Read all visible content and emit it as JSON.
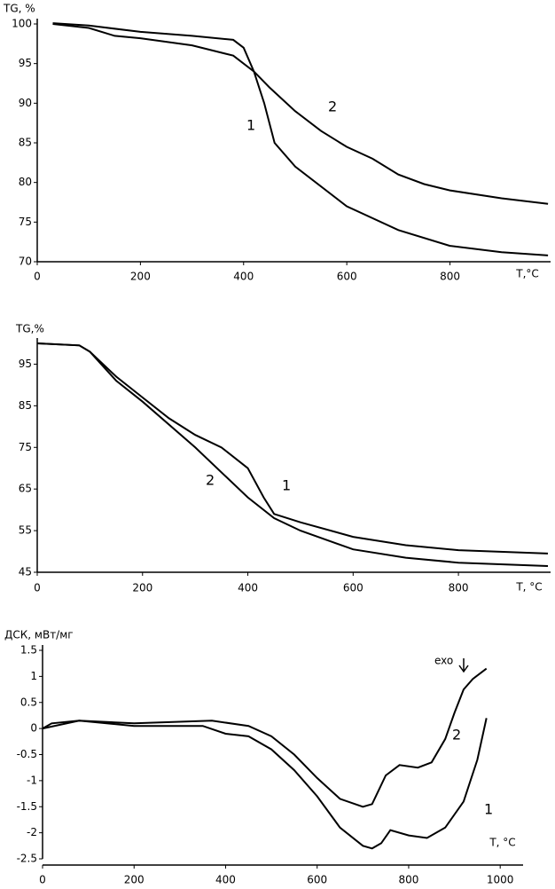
{
  "chart_data": [
    {
      "type": "line",
      "title": "TG, %",
      "x_label": "T,°C",
      "xlim": [
        0,
        995
      ],
      "xticks": [
        0,
        200,
        400,
        600,
        800
      ],
      "ylim": [
        70,
        100
      ],
      "yticks": [
        70,
        75,
        80,
        85,
        90,
        95,
        100
      ],
      "series": [
        {
          "name": "1",
          "color": "#000000",
          "x": [
            30,
            100,
            200,
            300,
            380,
            400,
            420,
            440,
            460,
            500,
            600,
            700,
            800,
            900,
            990
          ],
          "values": [
            100.1,
            99.8,
            99,
            98.5,
            98,
            97,
            94,
            90,
            85,
            82,
            77,
            74,
            72,
            71.2,
            70.8
          ]
        },
        {
          "name": "2",
          "color": "#000000",
          "x": [
            30,
            100,
            150,
            200,
            300,
            380,
            420,
            450,
            500,
            550,
            600,
            650,
            700,
            750,
            800,
            900,
            990
          ],
          "values": [
            100,
            99.5,
            98.5,
            98.2,
            97.3,
            96,
            94,
            92,
            89,
            86.5,
            84.5,
            83,
            81,
            79.8,
            79,
            78,
            77.3
          ]
        }
      ]
    },
    {
      "type": "line",
      "title": "TG,%",
      "x_label": "T, °C",
      "xlim": [
        0,
        975
      ],
      "xticks": [
        0,
        200,
        400,
        600,
        800
      ],
      "ylim": [
        45,
        100
      ],
      "yticks": [
        45,
        55,
        65,
        75,
        85,
        95
      ],
      "series": [
        {
          "name": "1",
          "color": "#000000",
          "x": [
            0,
            80,
            100,
            150,
            200,
            250,
            300,
            350,
            400,
            430,
            450,
            500,
            600,
            700,
            800,
            970
          ],
          "values": [
            100,
            99.5,
            98,
            92,
            87,
            82,
            78,
            75,
            70,
            63,
            59,
            57,
            53.5,
            51.5,
            50.3,
            49.5
          ]
        },
        {
          "name": "2",
          "color": "#000000",
          "x": [
            0,
            80,
            100,
            150,
            200,
            300,
            400,
            450,
            500,
            600,
            700,
            800,
            970
          ],
          "values": [
            100,
            99.5,
            98,
            91,
            86,
            75,
            63,
            58,
            55,
            50.5,
            48.5,
            47.3,
            46.5
          ]
        }
      ]
    },
    {
      "type": "line",
      "title": "ДСК, мВт/мг",
      "x_label": "T, °C",
      "annotation": "exo",
      "xlim": [
        0,
        1050
      ],
      "xticks": [
        0,
        200,
        400,
        600,
        800,
        1000
      ],
      "ylim": [
        -2.5,
        1.5
      ],
      "yticks": [
        -2.5,
        -2,
        -1.5,
        -1,
        -0.5,
        0,
        0.5,
        1,
        1.5
      ],
      "series": [
        {
          "name": "1",
          "color": "#000000",
          "x": [
            0,
            20,
            80,
            200,
            350,
            400,
            450,
            500,
            550,
            600,
            650,
            700,
            720,
            740,
            760,
            800,
            840,
            880,
            920,
            950,
            970
          ],
          "values": [
            0,
            0.1,
            0.15,
            0.05,
            0.05,
            -0.1,
            -0.15,
            -0.4,
            -0.8,
            -1.3,
            -1.9,
            -2.25,
            -2.3,
            -2.2,
            -1.95,
            -2.05,
            -2.1,
            -1.9,
            -1.4,
            -0.6,
            0.2
          ]
        },
        {
          "name": "2",
          "color": "#000000",
          "x": [
            0,
            80,
            200,
            370,
            450,
            500,
            550,
            600,
            650,
            700,
            720,
            750,
            780,
            820,
            850,
            880,
            900,
            920,
            940,
            970
          ],
          "values": [
            0,
            0.15,
            0.1,
            0.15,
            0.05,
            -0.15,
            -0.5,
            -0.95,
            -1.35,
            -1.5,
            -1.45,
            -0.9,
            -0.7,
            -0.75,
            -0.65,
            -0.2,
            0.3,
            0.75,
            0.95,
            1.15
          ]
        }
      ]
    }
  ]
}
